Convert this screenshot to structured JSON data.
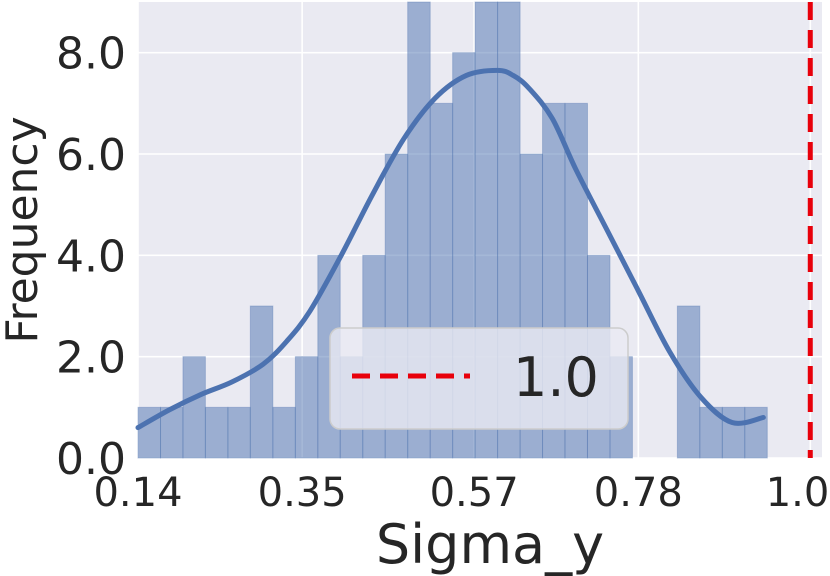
{
  "chart_data": {
    "type": "bar",
    "subtype": "histogram-with-kde",
    "title": "",
    "xlabel": "Sigma_y",
    "ylabel": "Frequency",
    "xlim": [
      0.14,
      1.015
    ],
    "ylim": [
      0,
      9.0
    ],
    "xticks": [
      0.14,
      0.35,
      0.57,
      0.78,
      1.0
    ],
    "xtick_labels": [
      "0.14",
      "0.35",
      "0.57",
      "0.78",
      "1.00"
    ],
    "yticks": [
      0,
      2,
      4,
      6,
      8
    ],
    "ytick_labels": [
      "0.0",
      "2.0",
      "4.0",
      "6.0",
      "8.0"
    ],
    "grid": true,
    "bin_edges": [
      0.14,
      0.1688,
      0.1975,
      0.2262,
      0.255,
      0.2837,
      0.3125,
      0.3413,
      0.37,
      0.3987,
      0.4275,
      0.4562,
      0.485,
      0.5138,
      0.5425,
      0.5712,
      0.6,
      0.6288,
      0.6575,
      0.6862,
      0.715,
      0.7438,
      0.7725,
      0.8012,
      0.83,
      0.8587,
      0.8875,
      0.9162,
      0.945
    ],
    "counts": [
      1,
      1,
      2,
      1,
      1,
      3,
      1,
      2,
      4,
      2,
      4,
      6,
      9,
      7,
      8,
      9,
      9,
      6,
      7,
      7,
      4,
      2,
      0,
      0,
      3,
      1,
      1,
      1
    ],
    "kde": {
      "x": [
        0.14,
        0.18,
        0.22,
        0.26,
        0.3,
        0.33,
        0.36,
        0.4,
        0.44,
        0.48,
        0.52,
        0.56,
        0.6,
        0.62,
        0.64,
        0.67,
        0.7,
        0.74,
        0.78,
        0.82,
        0.86,
        0.9,
        0.94
      ],
      "y": [
        0.6,
        0.95,
        1.25,
        1.5,
        1.85,
        2.3,
        2.9,
        4.0,
        5.2,
        6.3,
        7.1,
        7.55,
        7.65,
        7.55,
        7.3,
        6.7,
        5.7,
        4.5,
        3.3,
        2.1,
        1.2,
        0.7,
        0.8
      ]
    },
    "reference_line": {
      "x": 1.0,
      "style": "dashed",
      "color": "#e8000b"
    },
    "legend": {
      "entries": [
        "1.0"
      ],
      "placement": "center-bottom"
    },
    "colors": {
      "bars": "#4c72b0",
      "kde": "#4c72b0",
      "axes_background": "#eaeaf2",
      "grid": "#ffffff"
    }
  }
}
